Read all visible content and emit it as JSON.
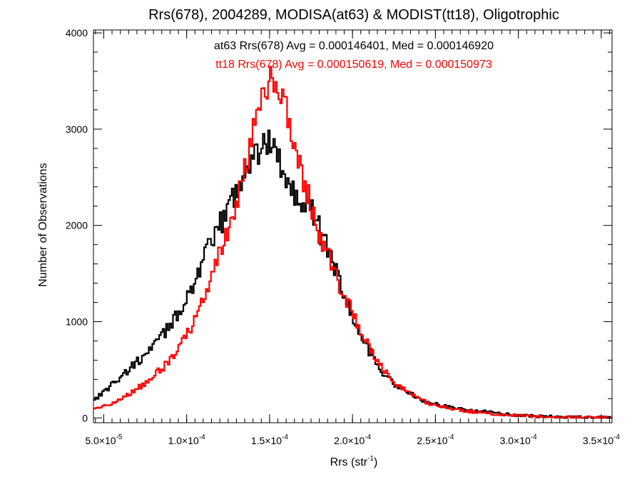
{
  "chart_data": {
    "type": "line",
    "style": "step histogram",
    "title": "Rrs(678), 2004289, MODISA(at63) & MODIST(tt18), Oligotrophic",
    "xlabel": {
      "main": "Rrs (str",
      "sup": "-1",
      "close": ")"
    },
    "ylabel": "Number of Observations",
    "xlim": [
      4.38e-05,
      0.0003565
    ],
    "ylim": [
      -50,
      4030
    ],
    "grid": false,
    "legend": "none",
    "annotations": [
      {
        "text": "at63 Rrs(678) Avg = 0.000146401, Med = 0.000146920",
        "color": "#000000"
      },
      {
        "text": "tt18 Rrs(678) Avg = 0.000150619, Med = 0.000150973",
        "color": "#ff0000"
      }
    ],
    "x_ticks": [
      {
        "value": 5e-05,
        "mantissa": "5.0×10",
        "exp": "-5"
      },
      {
        "value": 0.0001,
        "mantissa": "1.0×10",
        "exp": "-4"
      },
      {
        "value": 0.00015,
        "mantissa": "1.5×10",
        "exp": "-4"
      },
      {
        "value": 0.0002,
        "mantissa": "2.0×10",
        "exp": "-4"
      },
      {
        "value": 0.00025,
        "mantissa": "2.5×10",
        "exp": "-4"
      },
      {
        "value": 0.0003,
        "mantissa": "3.0×10",
        "exp": "-4"
      },
      {
        "value": 0.00035,
        "mantissa": "3.5×10",
        "exp": "-4"
      }
    ],
    "y_ticks": [
      {
        "value": 0,
        "label": "0"
      },
      {
        "value": 1000,
        "label": "1000"
      },
      {
        "value": 2000,
        "label": "2000"
      },
      {
        "value": 3000,
        "label": "3000"
      },
      {
        "value": 4000,
        "label": "4000"
      }
    ],
    "series": [
      {
        "color": "#000000",
        "x": [
          4.38e-05,
          4.7e-05,
          5e-05,
          5.5e-05,
          6e-05,
          6.5e-05,
          7e-05,
          7.5e-05,
          8e-05,
          8.5e-05,
          9e-05,
          9.5e-05,
          0.0001,
          0.000105,
          0.00011,
          0.000115,
          0.00012,
          0.000125,
          0.00013,
          0.000135,
          0.00014,
          0.000145,
          0.00015,
          0.000152,
          0.000155,
          0.00016,
          0.000165,
          0.00017,
          0.000175,
          0.00018,
          0.000185,
          0.00019,
          0.000195,
          0.0002,
          0.000205,
          0.00021,
          0.000215,
          0.00022,
          0.000225,
          0.00023,
          0.000235,
          0.00024,
          0.00025,
          0.00026,
          0.00027,
          0.00028,
          0.00029,
          0.0003,
          0.00031,
          0.00032,
          0.00033,
          0.00034,
          0.00035,
          0.0003565
        ],
        "values": [
          190,
          230,
          270,
          350,
          420,
          500,
          580,
          650,
          740,
          850,
          960,
          1090,
          1250,
          1430,
          1620,
          1820,
          1990,
          2180,
          2370,
          2560,
          2700,
          2800,
          2870,
          2940,
          2700,
          2500,
          2350,
          2280,
          2160,
          1960,
          1770,
          1540,
          1290,
          1050,
          850,
          700,
          570,
          430,
          360,
          300,
          250,
          195,
          140,
          110,
          80,
          65,
          40,
          30,
          20,
          14,
          9,
          7,
          5,
          3
        ]
      },
      {
        "color": "#ff0000",
        "x": [
          4.38e-05,
          4.7e-05,
          5e-05,
          5.5e-05,
          6e-05,
          6.5e-05,
          7e-05,
          7.5e-05,
          8e-05,
          8.5e-05,
          9e-05,
          9.5e-05,
          0.0001,
          0.000105,
          0.00011,
          0.000115,
          0.00012,
          0.000125,
          0.00013,
          0.000135,
          0.00014,
          0.000145,
          0.00015,
          0.000152,
          0.000155,
          0.00016,
          0.000165,
          0.00017,
          0.000175,
          0.00018,
          0.000185,
          0.00019,
          0.000195,
          0.0002,
          0.000205,
          0.00021,
          0.000215,
          0.00022,
          0.000225,
          0.00023,
          0.000235,
          0.00024,
          0.00025,
          0.00026,
          0.00027,
          0.00028,
          0.00029,
          0.0003,
          0.00031,
          0.00032,
          0.00033,
          0.00034,
          0.00035,
          0.0003565
        ],
        "values": [
          80,
          100,
          120,
          160,
          200,
          250,
          300,
          360,
          430,
          510,
          600,
          720,
          860,
          1030,
          1230,
          1440,
          1700,
          1970,
          2240,
          2560,
          2950,
          3300,
          3500,
          3550,
          3480,
          3230,
          2850,
          2500,
          2210,
          1930,
          1700,
          1480,
          1270,
          1090,
          900,
          740,
          590,
          470,
          380,
          300,
          250,
          190,
          130,
          100,
          70,
          50,
          35,
          25,
          16,
          11,
          8,
          6,
          4,
          3
        ]
      }
    ]
  }
}
